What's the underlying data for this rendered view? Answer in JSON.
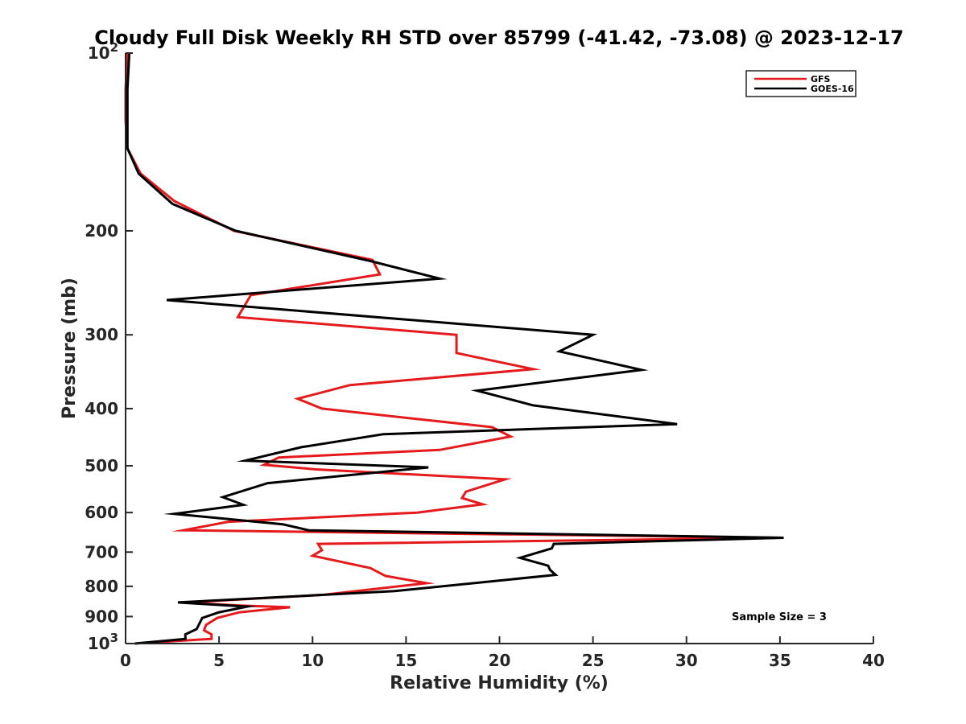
{
  "chart_data": {
    "type": "line",
    "title": "Cloudy Full Disk Weekly RH STD over 85799 (-41.42, -73.08) @ 2023-12-17",
    "xlabel": "Relative Humidity (%)",
    "ylabel": "Pressure (mb)",
    "xlim": [
      0,
      40
    ],
    "ylim": [
      100,
      1000
    ],
    "y_scale": "log",
    "y_reversed": true,
    "x_ticks": [
      "0",
      "5",
      "10",
      "15",
      "20",
      "25",
      "30",
      "35",
      "40"
    ],
    "y_ticks": [
      {
        "value": 100,
        "base": "10",
        "exp": "2"
      },
      {
        "value": 200,
        "label": "200"
      },
      {
        "value": 300,
        "label": "300"
      },
      {
        "value": 400,
        "label": "400"
      },
      {
        "value": 500,
        "label": "500"
      },
      {
        "value": 600,
        "label": "600"
      },
      {
        "value": 700,
        "label": "700"
      },
      {
        "value": 800,
        "label": "800"
      },
      {
        "value": 900,
        "label": "900"
      },
      {
        "value": 1000,
        "base": "10",
        "exp": "3"
      }
    ],
    "grid": false,
    "legend_position": "top-right",
    "annotation": "Sample Size = 3",
    "series": [
      {
        "name": "GFS",
        "color": "#e41a1c",
        "points": [
          [
            0.1,
            100
          ],
          [
            0.0,
            115
          ],
          [
            0.0,
            130
          ],
          [
            0.1,
            145
          ],
          [
            0.8,
            160
          ],
          [
            2.6,
            178
          ],
          [
            5.8,
            200
          ],
          [
            13.2,
            224
          ],
          [
            13.6,
            237
          ],
          [
            6.7,
            257
          ],
          [
            6.0,
            280
          ],
          [
            17.7,
            300
          ],
          [
            17.7,
            322
          ],
          [
            21.8,
            343
          ],
          [
            12.0,
            365
          ],
          [
            9.2,
            385
          ],
          [
            10.5,
            400
          ],
          [
            19.6,
            430
          ],
          [
            20.6,
            446
          ],
          [
            16.8,
            470
          ],
          [
            8.2,
            484
          ],
          [
            7.4,
            498
          ],
          [
            10.2,
            507
          ],
          [
            20.3,
            527
          ],
          [
            18.2,
            553
          ],
          [
            18.0,
            567
          ],
          [
            19.1,
            581
          ],
          [
            15.6,
            600
          ],
          [
            5.5,
            622
          ],
          [
            3.1,
            643
          ],
          [
            35.0,
            662
          ],
          [
            10.3,
            678
          ],
          [
            10.5,
            695
          ],
          [
            10.0,
            710
          ],
          [
            13.1,
            745
          ],
          [
            13.9,
            768
          ],
          [
            16.1,
            790
          ],
          [
            10.6,
            827
          ],
          [
            3.2,
            852
          ],
          [
            6.1,
            862
          ],
          [
            8.8,
            868
          ],
          [
            6.1,
            885
          ],
          [
            4.9,
            905
          ],
          [
            4.3,
            930
          ],
          [
            4.2,
            950
          ],
          [
            4.6,
            965
          ],
          [
            4.6,
            982
          ],
          [
            0.5,
            1000
          ]
        ]
      },
      {
        "name": "GOES-16",
        "color": "#000000",
        "points": [
          [
            0.2,
            100
          ],
          [
            0.1,
            115
          ],
          [
            0.1,
            130
          ],
          [
            0.1,
            145
          ],
          [
            0.7,
            160
          ],
          [
            2.5,
            180
          ],
          [
            5.9,
            200
          ],
          [
            13.1,
            225
          ],
          [
            16.8,
            241
          ],
          [
            2.2,
            262
          ],
          [
            25.0,
            300
          ],
          [
            23.2,
            320
          ],
          [
            27.6,
            344
          ],
          [
            18.8,
            373
          ],
          [
            21.8,
            395
          ],
          [
            29.5,
            425
          ],
          [
            13.8,
            442
          ],
          [
            9.4,
            465
          ],
          [
            6.4,
            490
          ],
          [
            16.2,
            503
          ],
          [
            7.6,
            535
          ],
          [
            5.2,
            565
          ],
          [
            6.3,
            582
          ],
          [
            2.6,
            603
          ],
          [
            8.4,
            628
          ],
          [
            9.8,
            643
          ],
          [
            35.2,
            662
          ],
          [
            22.9,
            678
          ],
          [
            22.8,
            690
          ],
          [
            21.1,
            716
          ],
          [
            22.6,
            738
          ],
          [
            22.7,
            750
          ],
          [
            23.0,
            765
          ],
          [
            14.4,
            815
          ],
          [
            2.8,
            852
          ],
          [
            6.5,
            866
          ],
          [
            5.0,
            885
          ],
          [
            4.1,
            905
          ],
          [
            3.8,
            945
          ],
          [
            3.2,
            965
          ],
          [
            3.2,
            982
          ],
          [
            0.5,
            1000
          ]
        ]
      }
    ]
  }
}
